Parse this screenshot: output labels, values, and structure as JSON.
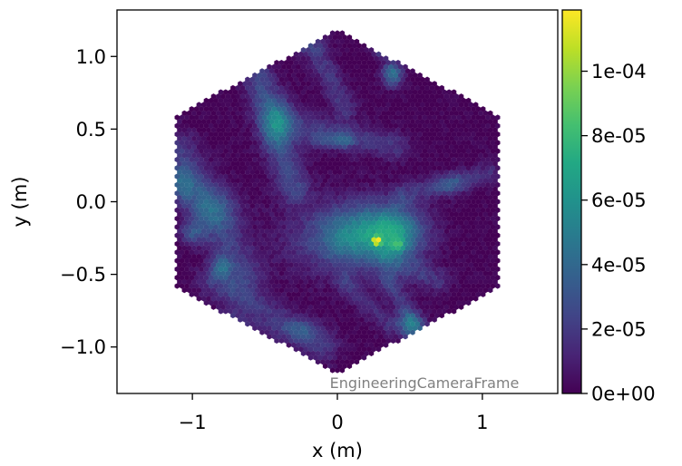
{
  "chart_data": {
    "type": "heatmap",
    "title": "",
    "xlabel": "x  (m)",
    "ylabel": "y  (m)",
    "xlim": [
      -1.52,
      1.52
    ],
    "ylim": [
      -1.32,
      1.32
    ],
    "x_ticks": [
      {
        "value": -1,
        "label": "−1"
      },
      {
        "value": 0,
        "label": "0"
      },
      {
        "value": 1,
        "label": "1"
      }
    ],
    "y_ticks": [
      {
        "value": 1.0,
        "label": "1.0"
      },
      {
        "value": 0.5,
        "label": "0.5"
      },
      {
        "value": 0.0,
        "label": "0.0"
      },
      {
        "value": -0.5,
        "label": "−0.5"
      },
      {
        "value": -1.0,
        "label": "−1.0"
      }
    ],
    "frame_label": "EngineeringCameraFrame",
    "colorbar": {
      "colormap": "viridis",
      "range": [
        0,
        0.000119
      ],
      "ticks": [
        {
          "value": 0,
          "label": "0e+00"
        },
        {
          "value": 2e-05,
          "label": "2e-05"
        },
        {
          "value": 4e-05,
          "label": "4e-05"
        },
        {
          "value": 6e-05,
          "label": "6e-05"
        },
        {
          "value": 8e-05,
          "label": "8e-05"
        },
        {
          "value": 0.0001,
          "label": "1e-04"
        }
      ]
    },
    "camera": {
      "shape": "hexagon",
      "x_extent": [
        -1.12,
        1.12
      ],
      "y_extent": [
        -1.18,
        1.18
      ],
      "pixel_pitch": 0.0335
    },
    "features": [
      {
        "kind": "blob",
        "x": 0.3,
        "y": -0.22,
        "sx": 0.2,
        "sy": 0.14,
        "amp": 5.2e-05
      },
      {
        "kind": "blob",
        "x": 0.42,
        "y": -0.2,
        "sx": 0.1,
        "sy": 0.1,
        "amp": 2e-05
      },
      {
        "kind": "blob",
        "x": 0.27,
        "y": -0.27,
        "sx": 0.02,
        "sy": 0.02,
        "amp": 7e-05
      },
      {
        "kind": "blob",
        "x": 0.42,
        "y": -0.3,
        "sx": 0.03,
        "sy": 0.03,
        "amp": 2.5e-05
      },
      {
        "kind": "blob",
        "x": 0.0,
        "y": -0.25,
        "sx": 0.28,
        "sy": 0.18,
        "amp": 2.2e-05
      },
      {
        "kind": "blob",
        "x": 0.0,
        "y": -0.25,
        "sx": 0.12,
        "sy": 0.12,
        "amp": 1e-05
      },
      {
        "kind": "blob",
        "x": 0.38,
        "y": 0.88,
        "sx": 0.05,
        "sy": 0.06,
        "amp": 4.5e-05
      },
      {
        "kind": "blob",
        "x": 0.3,
        "y": 1.05,
        "sx": 0.05,
        "sy": 0.04,
        "amp": 2.5e-05
      },
      {
        "kind": "blob",
        "x": 0.5,
        "y": -0.85,
        "sx": 0.06,
        "sy": 0.06,
        "amp": 4e-05
      },
      {
        "kind": "blob",
        "x": -0.42,
        "y": 0.55,
        "sx": 0.08,
        "sy": 0.12,
        "amp": 3e-05
      },
      {
        "kind": "blob",
        "x": -1.08,
        "y": 0.12,
        "sx": 0.08,
        "sy": 0.08,
        "amp": 3e-05
      },
      {
        "kind": "blob",
        "x": -0.85,
        "y": -0.05,
        "sx": 0.12,
        "sy": 0.1,
        "amp": 2.5e-05
      },
      {
        "kind": "blob",
        "x": -0.8,
        "y": -0.45,
        "sx": 0.05,
        "sy": 0.05,
        "amp": 3e-05
      },
      {
        "kind": "blob",
        "x": -1.0,
        "y": -0.22,
        "sx": 0.06,
        "sy": 0.06,
        "amp": 2.5e-05
      },
      {
        "kind": "blob",
        "x": -0.1,
        "y": 0.42,
        "sx": 0.08,
        "sy": 0.04,
        "amp": 1.8e-05
      },
      {
        "kind": "blob",
        "x": 0.05,
        "y": 0.42,
        "sx": 0.05,
        "sy": 0.04,
        "amp": 2.2e-05
      },
      {
        "kind": "blob",
        "x": 0.78,
        "y": 0.12,
        "sx": 0.08,
        "sy": 0.05,
        "amp": 2e-05
      },
      {
        "kind": "blob",
        "x": -0.28,
        "y": 1.08,
        "sx": 0.08,
        "sy": 0.05,
        "amp": 1.8e-05
      },
      {
        "kind": "blob",
        "x": -0.25,
        "y": -0.88,
        "sx": 0.1,
        "sy": 0.05,
        "amp": 1.8e-05
      },
      {
        "kind": "band",
        "x1": -0.55,
        "y1": 0.85,
        "x2": -0.3,
        "y2": 0.1,
        "w": 0.08,
        "amp": 2.4e-05
      },
      {
        "kind": "band",
        "x1": -1.1,
        "y1": 0.35,
        "x2": -0.65,
        "y2": -0.5,
        "w": 0.1,
        "amp": 2e-05
      },
      {
        "kind": "band",
        "x1": -0.85,
        "y1": -0.55,
        "x2": -0.1,
        "y2": -1.0,
        "w": 0.08,
        "amp": 1.8e-05
      },
      {
        "kind": "band",
        "x1": -0.2,
        "y1": 1.15,
        "x2": 0.05,
        "y2": 0.65,
        "w": 0.06,
        "amp": 1.8e-05
      },
      {
        "kind": "band",
        "x1": -0.35,
        "y1": 0.55,
        "x2": 0.4,
        "y2": 0.38,
        "w": 0.07,
        "amp": 1.8e-05
      },
      {
        "kind": "band",
        "x1": 0.35,
        "y1": -0.4,
        "x2": 0.7,
        "y2": -0.55,
        "w": 0.06,
        "amp": 1.6e-05
      },
      {
        "kind": "band",
        "x1": 0.35,
        "y1": -0.55,
        "x2": 0.6,
        "y2": -0.95,
        "w": 0.05,
        "amp": 1.8e-05
      },
      {
        "kind": "band",
        "x1": 0.45,
        "y1": 0.05,
        "x2": 1.05,
        "y2": 0.2,
        "w": 0.05,
        "amp": 1.6e-05
      },
      {
        "kind": "band",
        "x1": 0.05,
        "y1": -0.55,
        "x2": 0.35,
        "y2": -0.85,
        "w": 0.05,
        "amp": 1.4e-05
      },
      {
        "kind": "band",
        "x1": -0.75,
        "y1": -0.8,
        "x2": -0.55,
        "y2": -0.95,
        "w": 0.05,
        "amp": 1.4e-05
      }
    ]
  }
}
